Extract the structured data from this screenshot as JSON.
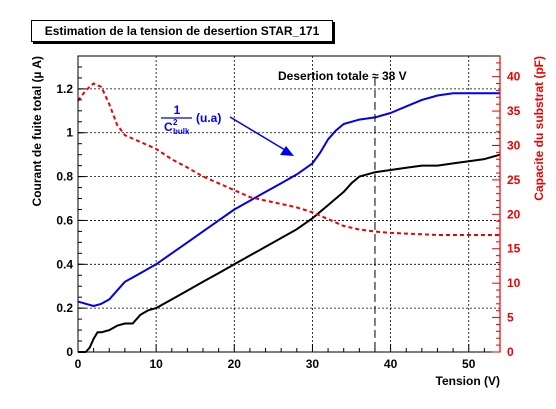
{
  "chart_data": {
    "type": "line",
    "title": "Estimation de la tension de desertion STAR_171",
    "xlabel": "Tension (V)",
    "ylabel": "Courant de fuite total (µ A)",
    "y2label": "Capacite du substrat (pF)",
    "xlim": [
      0,
      54
    ],
    "ylim": [
      0,
      1.35
    ],
    "y2lim": [
      0,
      43
    ],
    "x_ticks": [
      "0",
      "10",
      "20",
      "30",
      "40",
      "50"
    ],
    "y_ticks": [
      "0",
      "0.2",
      "0.4",
      "0.6",
      "0.8",
      "1",
      "1.2"
    ],
    "y2_ticks": [
      "0",
      "5",
      "10",
      "15",
      "20",
      "25",
      "30",
      "35",
      "40"
    ],
    "grid": true,
    "series": [
      {
        "color": "#000000",
        "style": "solid",
        "axis": "left",
        "x": [
          0,
          1,
          1.5,
          2,
          2.5,
          3,
          4,
          5,
          6,
          7,
          8,
          9,
          10,
          12,
          14,
          16,
          18,
          20,
          22,
          24,
          26,
          28,
          30,
          32,
          34,
          35,
          36,
          37,
          38,
          40,
          42,
          44,
          46,
          48,
          50,
          52,
          54
        ],
        "y": [
          0,
          0,
          0.02,
          0.06,
          0.09,
          0.09,
          0.1,
          0.12,
          0.13,
          0.13,
          0.17,
          0.19,
          0.2,
          0.24,
          0.28,
          0.32,
          0.36,
          0.4,
          0.44,
          0.48,
          0.52,
          0.56,
          0.61,
          0.67,
          0.73,
          0.77,
          0.8,
          0.81,
          0.82,
          0.83,
          0.84,
          0.85,
          0.85,
          0.86,
          0.87,
          0.88,
          0.9
        ]
      },
      {
        "color": "#0000ee",
        "style": "solid",
        "axis": "left",
        "label": "(u.a)",
        "x": [
          0,
          1,
          2,
          3,
          4,
          5,
          6,
          7,
          8,
          10,
          12,
          14,
          16,
          18,
          20,
          22,
          24,
          26,
          28,
          30,
          31,
          32,
          33,
          34,
          35,
          36,
          38,
          40,
          42,
          44,
          46,
          48,
          50,
          52,
          54
        ],
        "y": [
          0.23,
          0.22,
          0.21,
          0.22,
          0.24,
          0.28,
          0.32,
          0.34,
          0.36,
          0.4,
          0.45,
          0.5,
          0.55,
          0.6,
          0.65,
          0.69,
          0.73,
          0.77,
          0.81,
          0.86,
          0.91,
          0.97,
          1.01,
          1.04,
          1.05,
          1.06,
          1.07,
          1.09,
          1.12,
          1.15,
          1.17,
          1.18,
          1.18,
          1.18,
          1.18
        ]
      },
      {
        "color": "#ee0000",
        "style": "dashed",
        "axis": "right",
        "x": [
          0,
          1,
          2,
          3,
          4,
          5,
          6,
          8,
          10,
          12,
          14,
          16,
          18,
          20,
          22,
          24,
          26,
          28,
          30,
          32,
          34,
          36,
          38,
          40,
          42,
          44,
          46,
          48,
          50,
          52,
          54
        ],
        "y": [
          36.5,
          38,
          39,
          38.5,
          36,
          33,
          31.5,
          30.5,
          29.5,
          28,
          26.8,
          25.5,
          24.5,
          23.5,
          22.5,
          22,
          21.5,
          21,
          20.3,
          19.3,
          18.3,
          17.8,
          17.5,
          17.3,
          17.2,
          17.1,
          17,
          17,
          17,
          17,
          17
        ]
      }
    ],
    "annotations": {
      "desertion_label": "Desertion totale ≈ 38 V",
      "desertion_x": 38,
      "fraction_numerator": "1",
      "fraction_denominator": "C",
      "fraction_superscript": "2",
      "fraction_subscript": "bulk",
      "fraction_unit": "(u.a)"
    },
    "colors": {
      "current": "#000000",
      "inverse_capacitance": "#0000ee",
      "capacitance": "#ee0000"
    }
  }
}
